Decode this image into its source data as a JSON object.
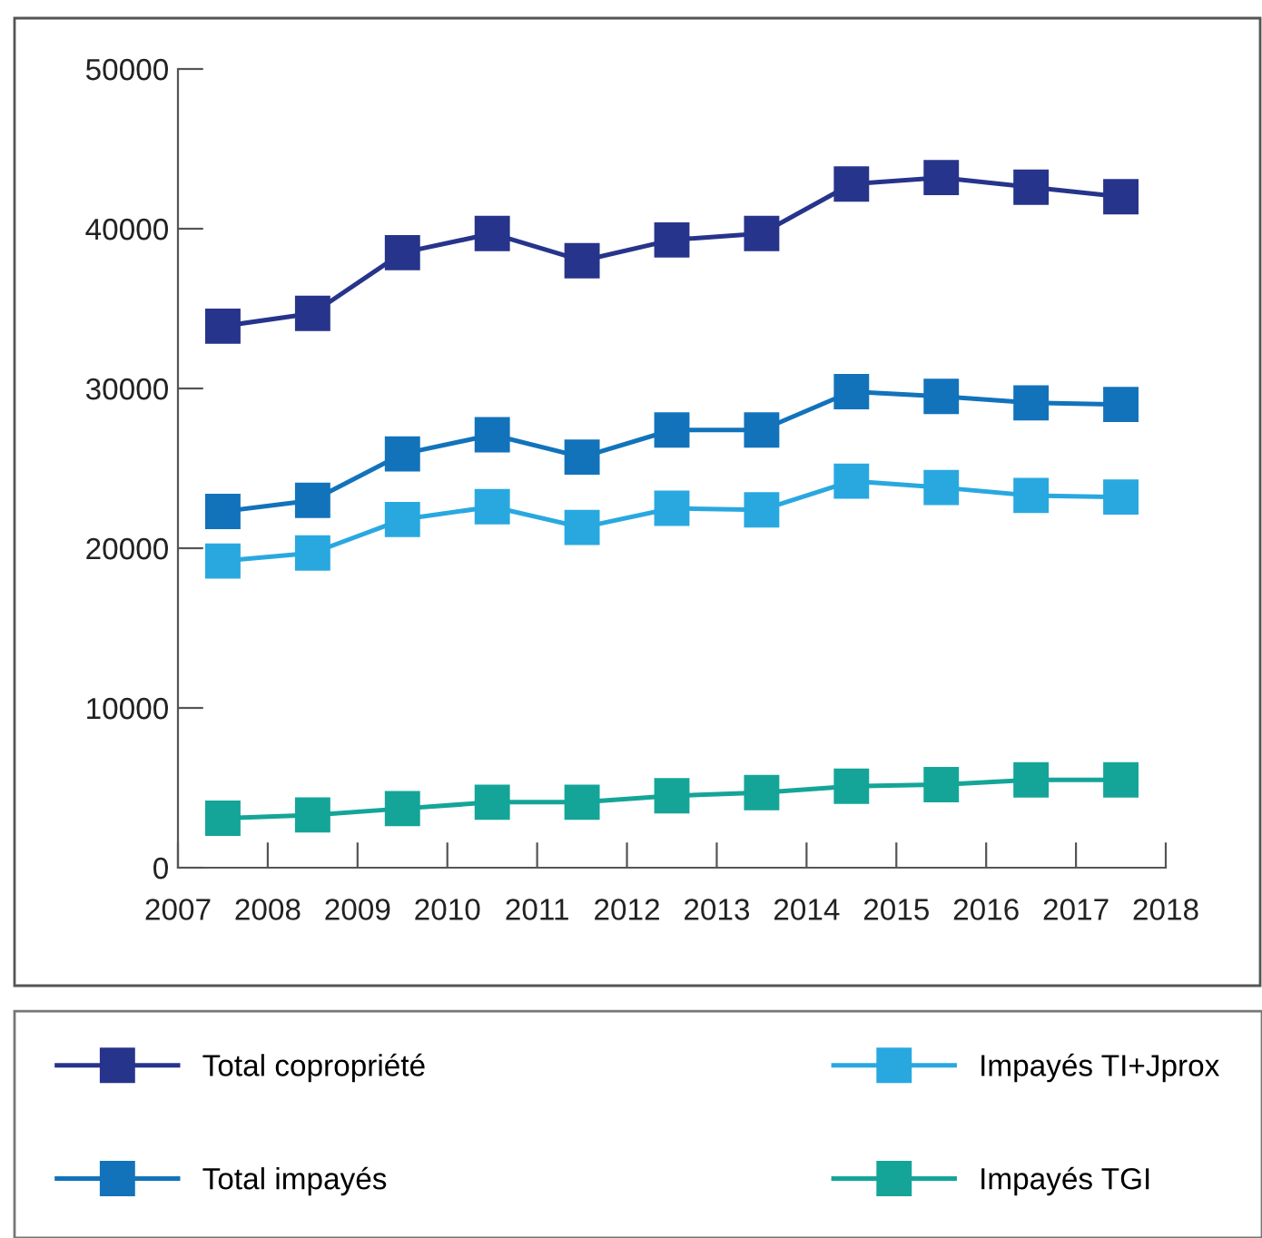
{
  "chart_data": {
    "type": "line",
    "x": [
      2007.5,
      2008.5,
      2009.5,
      2010.5,
      2011.5,
      2012.5,
      2013.5,
      2014.5,
      2015.5,
      2016.5,
      2017.5
    ],
    "series": [
      {
        "name": "Total copropriété",
        "color": "#27348b",
        "values": [
          33900,
          34700,
          38500,
          39700,
          38000,
          39300,
          39700,
          42800,
          43200,
          42600,
          42000
        ]
      },
      {
        "name": "Total impayés",
        "color": "#1273bb",
        "values": [
          22300,
          23000,
          25900,
          27100,
          25700,
          27400,
          27400,
          29800,
          29500,
          29100,
          29000
        ]
      },
      {
        "name": "Impayés TI+Jprox",
        "color": "#29a8e0",
        "values": [
          19200,
          19700,
          21800,
          22600,
          21300,
          22500,
          22400,
          24200,
          23800,
          23300,
          23200
        ]
      },
      {
        "name": "Impayés TGI",
        "color": "#14a598",
        "values": [
          3100,
          3300,
          3700,
          4100,
          4100,
          4500,
          4700,
          5100,
          5200,
          5500,
          5500
        ]
      }
    ],
    "xlim": [
      2007,
      2018
    ],
    "xticks": [
      2007,
      2008,
      2009,
      2010,
      2011,
      2012,
      2013,
      2014,
      2015,
      2016,
      2017,
      2018
    ],
    "ylim": [
      0,
      50000
    ],
    "yticks": [
      0,
      10000,
      20000,
      30000,
      40000,
      50000
    ],
    "grid": false,
    "legend": "bottom",
    "marker": "square",
    "line_style": "solid"
  }
}
